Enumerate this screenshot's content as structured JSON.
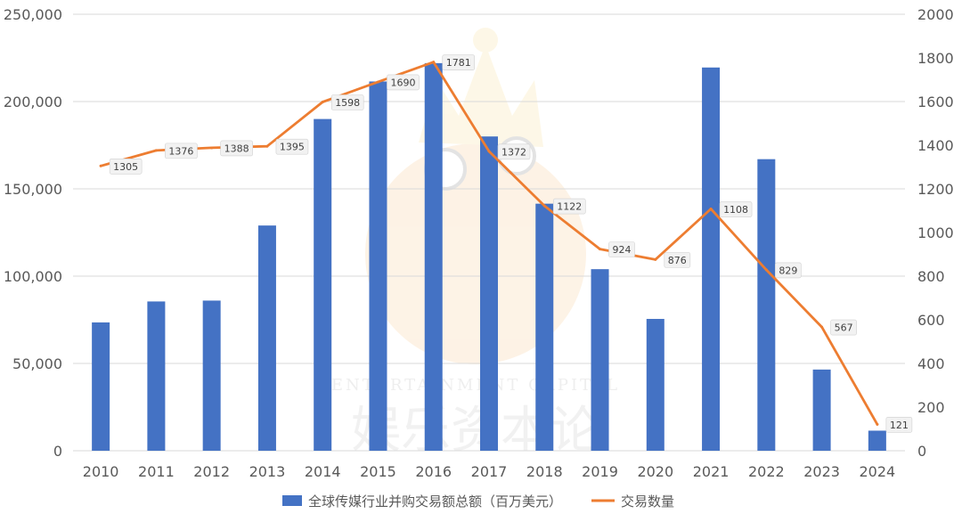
{
  "chart_data": {
    "type": "bar",
    "categories": [
      "2010",
      "2011",
      "2012",
      "2013",
      "2014",
      "2015",
      "2016",
      "2017",
      "2018",
      "2019",
      "2020",
      "2021",
      "2022",
      "2023",
      "2024"
    ],
    "series": [
      {
        "name": "全球传媒行业并购交易额总额（百万美元）",
        "type": "bar",
        "axis": "left",
        "color": "#4472C4",
        "values": [
          73500,
          85500,
          86000,
          129000,
          190000,
          211500,
          222000,
          180000,
          141500,
          104000,
          75500,
          219500,
          167000,
          46500,
          11500
        ]
      },
      {
        "name": "交易数量",
        "type": "line",
        "axis": "right",
        "color": "#ED7D31",
        "values": [
          1305,
          1376,
          1388,
          1395,
          1598,
          1690,
          1781,
          1372,
          1122,
          924,
          876,
          1108,
          829,
          567,
          121
        ],
        "data_labels": [
          "1305",
          "1376",
          "1388",
          "1395",
          "1598",
          "1690",
          "1781",
          "1372",
          "1122",
          "924",
          "876",
          "1108",
          "829",
          "567",
          "121"
        ]
      }
    ],
    "y_left": {
      "min": 0,
      "max": 250000,
      "ticks": [
        "0",
        "50,000",
        "100,000",
        "150,000",
        "200,000",
        "250,000"
      ]
    },
    "y_right": {
      "min": 0,
      "max": 2000,
      "ticks": [
        "0",
        "200",
        "400",
        "600",
        "800",
        "1000",
        "1200",
        "1400",
        "1600",
        "1800",
        "2000"
      ]
    },
    "grid": true,
    "legend_position": "bottom",
    "title": "",
    "xlabel": "",
    "ylabel": ""
  },
  "watermark": {
    "latin": "ENTERTAINMENT CAPITAL",
    "chinese": "娱乐资本论",
    "icon": "crown-mascot-icon"
  },
  "colors": {
    "bar": "#4472C4",
    "line": "#ED7D31",
    "grid": "#D9D9D9",
    "text": "#595959",
    "label_bg": "#F2F2F2"
  }
}
